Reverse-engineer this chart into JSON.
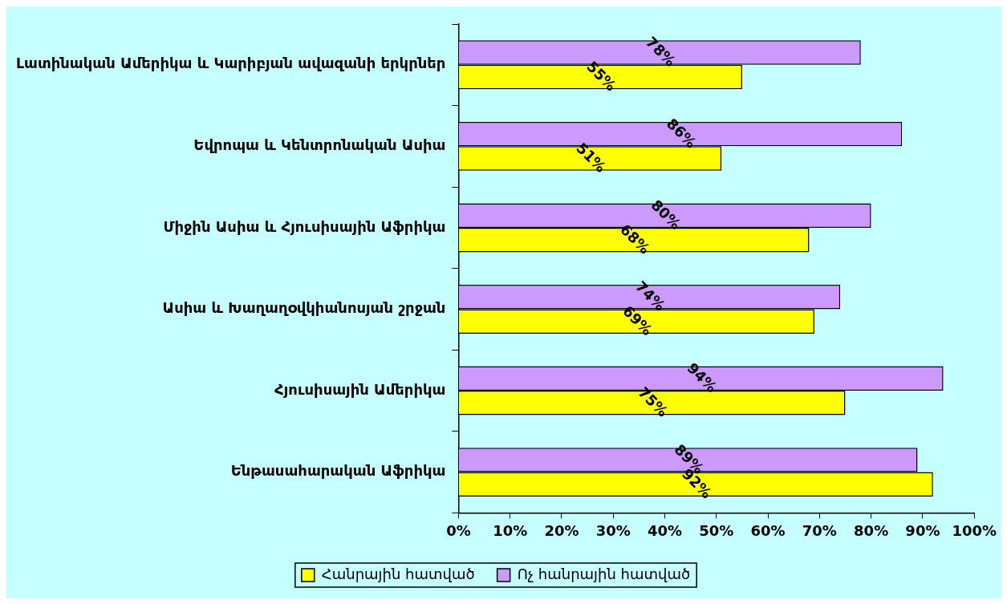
{
  "chart_data": {
    "type": "bar",
    "orientation": "horizontal",
    "categories": [
      "Լատինական Ամերիկա և Կարիբյան ավազանի երկրներ",
      "Եվրոպա և Կենտրոնական Ասիա",
      "Միջին Ասիա և Հյուսիսային Աֆրիկա",
      "Ասիա և Խաղաղօվկիանոսյան շրջան",
      "Հյուսիսային Ամերիկա",
      "Ենթասահարական Աֆրիկա"
    ],
    "series": [
      {
        "name": "Հանրային հատված",
        "color": "#ffff00",
        "values": [
          55,
          51,
          68,
          69,
          75,
          92
        ],
        "value_labels": [
          "55%",
          "51%",
          "68%",
          "69%",
          "75%",
          "92%"
        ]
      },
      {
        "name": "Ոչ հանրային հատված",
        "color": "#cc99ff",
        "values": [
          78,
          86,
          80,
          74,
          94,
          89
        ],
        "value_labels": [
          "78%",
          "86%",
          "80%",
          "74%",
          "94%",
          "89%"
        ]
      }
    ],
    "xlim": [
      0,
      100
    ],
    "xticks": [
      {
        "value": 0,
        "label": "0%"
      },
      {
        "value": 10,
        "label": "10%"
      },
      {
        "value": 20,
        "label": "20%"
      },
      {
        "value": 30,
        "label": "30%"
      },
      {
        "value": 40,
        "label": "40%"
      },
      {
        "value": 50,
        "label": "50%"
      },
      {
        "value": 60,
        "label": "60%"
      },
      {
        "value": 70,
        "label": "70%"
      },
      {
        "value": 80,
        "label": "80%"
      },
      {
        "value": 90,
        "label": "90%"
      },
      {
        "value": 100,
        "label": "100%"
      }
    ],
    "grid": false,
    "legend": "bottom"
  }
}
